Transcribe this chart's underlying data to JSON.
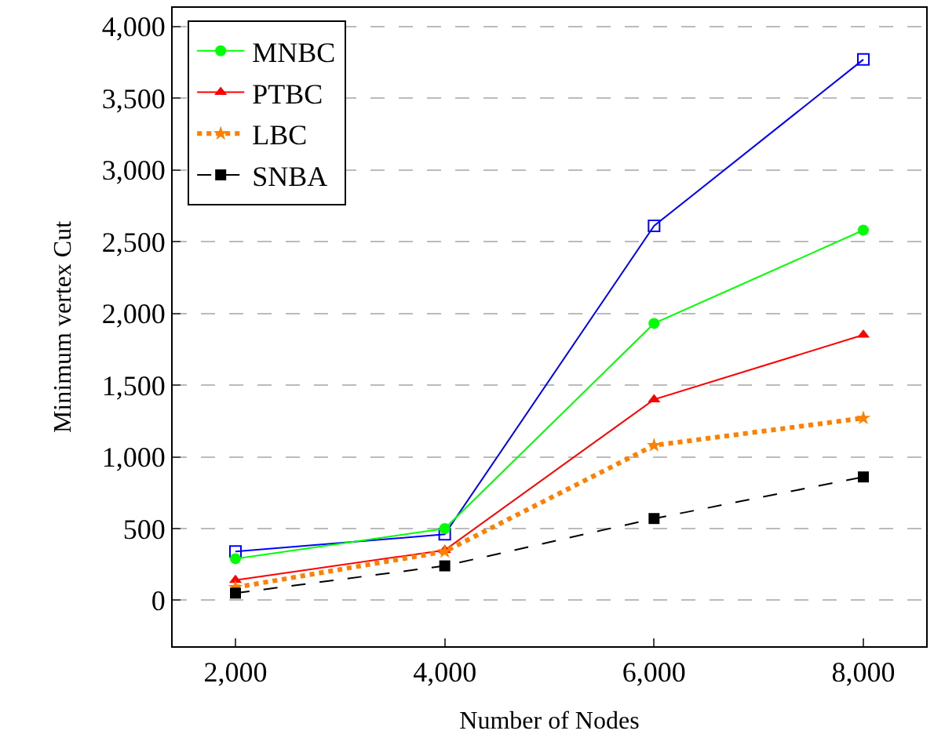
{
  "chart_data": {
    "type": "line",
    "xlabel": "Number of Nodes",
    "ylabel": "Minimum vertex Cut",
    "x": [
      2000,
      4000,
      6000,
      8000
    ],
    "series": [
      {
        "color": "#0000ff",
        "marker": "square-open",
        "line_style": "solid",
        "values": [
          340,
          460,
          2610,
          3770
        ]
      },
      {
        "name": "MNBC",
        "color": "#00ff00",
        "marker": "circle",
        "line_style": "solid",
        "values": [
          290,
          500,
          1930,
          2580
        ]
      },
      {
        "name": "PTBC",
        "color": "#ff0000",
        "marker": "triangle",
        "line_style": "solid",
        "values": [
          140,
          350,
          1400,
          1850
        ]
      },
      {
        "name": "LBC",
        "color": "#ff8000",
        "marker": "star",
        "line_style": "dotted",
        "values": [
          90,
          340,
          1080,
          1270
        ]
      },
      {
        "name": "SNBA",
        "color": "#000000",
        "marker": "square",
        "line_style": "dashed",
        "values": [
          50,
          240,
          570,
          860
        ]
      }
    ],
    "xlim": [
      1400,
      8600
    ],
    "xticks": [
      {
        "value": 2000,
        "label": "2,000"
      },
      {
        "value": 4000,
        "label": "4,000"
      },
      {
        "value": 6000,
        "label": "6,000"
      },
      {
        "value": 8000,
        "label": "8,000"
      }
    ],
    "ylim": [
      -320,
      4130
    ],
    "yticks": [
      0,
      500,
      {
        "value": 1000,
        "label": "1,000"
      },
      {
        "value": 1500,
        "label": "1,500"
      },
      {
        "value": 2000,
        "label": "2,000"
      },
      {
        "value": 2500,
        "label": "2,500"
      },
      {
        "value": 3000,
        "label": "3,000"
      },
      {
        "value": 3500,
        "label": "3,500"
      },
      {
        "value": 4000,
        "label": "4,000"
      }
    ],
    "grid": "y",
    "legend": "top left"
  }
}
